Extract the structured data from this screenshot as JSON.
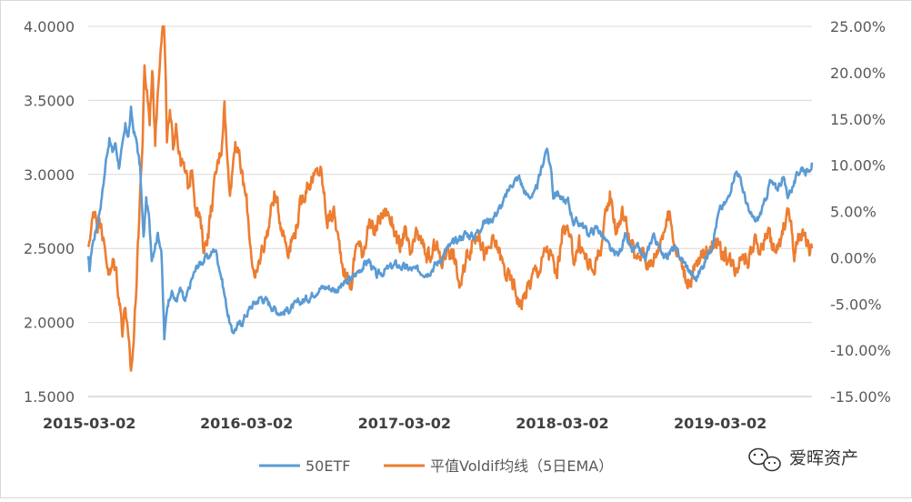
{
  "chart_data": {
    "type": "line",
    "title": "",
    "xlabel": "",
    "ylabel": "",
    "x_ticks": [
      "2015-03-02",
      "2016-03-02",
      "2017-03-02",
      "2018-03-02",
      "2019-03-02"
    ],
    "x_range": [
      "2015-03-02",
      "2019-09-30"
    ],
    "y_left": {
      "ticks": [
        "1.5000",
        "2.0000",
        "2.5000",
        "3.0000",
        "3.5000",
        "4.0000"
      ],
      "ylim": [
        1.5,
        4.0
      ]
    },
    "y_right": {
      "ticks": [
        "-15.00%",
        "-10.00%",
        "-5.00%",
        "0.00%",
        "5.00%",
        "10.00%",
        "15.00%",
        "20.00%",
        "25.00%"
      ],
      "ylim": [
        -15,
        25
      ],
      "unit": "%"
    },
    "grid": true,
    "legend_position": "bottom",
    "series": [
      {
        "name": "50ETF",
        "axis": "left",
        "color": "#5B9BD5",
        "points": [
          [
            "2015-03-02",
            2.43
          ],
          [
            "2015-03-05",
            2.35
          ],
          [
            "2015-03-11",
            2.52
          ],
          [
            "2015-03-18",
            2.6
          ],
          [
            "2015-03-25",
            2.7
          ],
          [
            "2015-04-01",
            2.82
          ],
          [
            "2015-04-08",
            2.98
          ],
          [
            "2015-04-14",
            3.14
          ],
          [
            "2015-04-20",
            3.24
          ],
          [
            "2015-04-27",
            3.15
          ],
          [
            "2015-05-04",
            3.21
          ],
          [
            "2015-05-12",
            3.06
          ],
          [
            "2015-05-19",
            3.16
          ],
          [
            "2015-05-27",
            3.32
          ],
          [
            "2015-06-03",
            3.26
          ],
          [
            "2015-06-09",
            3.43
          ],
          [
            "2015-06-15",
            3.3
          ],
          [
            "2015-06-23",
            3.2
          ],
          [
            "2015-06-30",
            3.04
          ],
          [
            "2015-07-08",
            2.56
          ],
          [
            "2015-07-14",
            2.83
          ],
          [
            "2015-07-20",
            2.72
          ],
          [
            "2015-07-27",
            2.44
          ],
          [
            "2015-08-03",
            2.52
          ],
          [
            "2015-08-10",
            2.6
          ],
          [
            "2015-08-18",
            2.5
          ],
          [
            "2015-08-25",
            1.89
          ],
          [
            "2015-09-01",
            2.12
          ],
          [
            "2015-09-10",
            2.22
          ],
          [
            "2015-09-20",
            2.14
          ],
          [
            "2015-10-01",
            2.22
          ],
          [
            "2015-10-12",
            2.13
          ],
          [
            "2015-10-26",
            2.28
          ],
          [
            "2015-11-09",
            2.38
          ],
          [
            "2015-11-23",
            2.42
          ],
          [
            "2015-12-07",
            2.45
          ],
          [
            "2015-12-21",
            2.5
          ],
          [
            "2016-01-04",
            2.31
          ],
          [
            "2016-01-15",
            2.12
          ],
          [
            "2016-01-28",
            1.93
          ],
          [
            "2016-02-05",
            1.96
          ],
          [
            "2016-02-20",
            2.0
          ],
          [
            "2016-03-02",
            2.06
          ],
          [
            "2016-03-16",
            2.12
          ],
          [
            "2016-04-05",
            2.17
          ],
          [
            "2016-04-20",
            2.14
          ],
          [
            "2016-05-10",
            2.08
          ],
          [
            "2016-05-25",
            2.07
          ],
          [
            "2016-06-15",
            2.1
          ],
          [
            "2016-07-05",
            2.14
          ],
          [
            "2016-07-25",
            2.17
          ],
          [
            "2016-08-15",
            2.23
          ],
          [
            "2016-09-05",
            2.24
          ],
          [
            "2016-09-25",
            2.22
          ],
          [
            "2016-10-15",
            2.26
          ],
          [
            "2016-11-05",
            2.31
          ],
          [
            "2016-11-25",
            2.38
          ],
          [
            "2016-12-10",
            2.42
          ],
          [
            "2016-12-28",
            2.31
          ],
          [
            "2017-01-15",
            2.35
          ],
          [
            "2017-02-10",
            2.39
          ],
          [
            "2017-03-02",
            2.37
          ],
          [
            "2017-04-01",
            2.35
          ],
          [
            "2017-04-25",
            2.34
          ],
          [
            "2017-05-20",
            2.41
          ],
          [
            "2017-06-10",
            2.5
          ],
          [
            "2017-06-30",
            2.55
          ],
          [
            "2017-07-20",
            2.6
          ],
          [
            "2017-08-10",
            2.58
          ],
          [
            "2017-08-30",
            2.67
          ],
          [
            "2017-09-20",
            2.7
          ],
          [
            "2017-10-15",
            2.8
          ],
          [
            "2017-11-05",
            2.94
          ],
          [
            "2017-11-22",
            2.98
          ],
          [
            "2017-12-08",
            2.86
          ],
          [
            "2017-12-28",
            2.86
          ],
          [
            "2018-01-10",
            3.0
          ],
          [
            "2018-01-24",
            3.18
          ],
          [
            "2018-02-05",
            3.02
          ],
          [
            "2018-02-09",
            2.86
          ],
          [
            "2018-02-20",
            2.88
          ],
          [
            "2018-03-02",
            2.82
          ],
          [
            "2018-03-15",
            2.82
          ],
          [
            "2018-03-28",
            2.68
          ],
          [
            "2018-04-15",
            2.67
          ],
          [
            "2018-05-01",
            2.6
          ],
          [
            "2018-05-22",
            2.64
          ],
          [
            "2018-06-10",
            2.55
          ],
          [
            "2018-06-25",
            2.47
          ],
          [
            "2018-07-10",
            2.46
          ],
          [
            "2018-07-25",
            2.58
          ],
          [
            "2018-08-10",
            2.48
          ],
          [
            "2018-08-25",
            2.5
          ],
          [
            "2018-09-10",
            2.42
          ],
          [
            "2018-09-28",
            2.6
          ],
          [
            "2018-10-12",
            2.5
          ],
          [
            "2018-10-30",
            2.45
          ],
          [
            "2018-11-15",
            2.5
          ],
          [
            "2018-12-05",
            2.42
          ],
          [
            "2018-12-25",
            2.33
          ],
          [
            "2019-01-04",
            2.29
          ],
          [
            "2019-01-20",
            2.38
          ],
          [
            "2019-02-10",
            2.52
          ],
          [
            "2019-02-25",
            2.72
          ],
          [
            "2019-03-02",
            2.76
          ],
          [
            "2019-03-18",
            2.82
          ],
          [
            "2019-04-01",
            2.98
          ],
          [
            "2019-04-10",
            3.03
          ],
          [
            "2019-04-25",
            2.88
          ],
          [
            "2019-05-10",
            2.72
          ],
          [
            "2019-05-25",
            2.68
          ],
          [
            "2019-06-10",
            2.78
          ],
          [
            "2019-06-25",
            2.95
          ],
          [
            "2019-07-10",
            2.9
          ],
          [
            "2019-07-25",
            2.98
          ],
          [
            "2019-08-05",
            2.86
          ],
          [
            "2019-08-20",
            2.94
          ],
          [
            "2019-09-05",
            3.05
          ],
          [
            "2019-09-18",
            3.02
          ],
          [
            "2019-09-30",
            3.08
          ]
        ]
      },
      {
        "name": "平值Voldif均线（5日EMA）",
        "axis": "right",
        "color": "#ED7D31",
        "points": [
          [
            "2015-03-02",
            0.5
          ],
          [
            "2015-03-06",
            2.5
          ],
          [
            "2015-03-12",
            4.0
          ],
          [
            "2015-03-18",
            5.3
          ],
          [
            "2015-03-25",
            3.5
          ],
          [
            "2015-04-01",
            4.5
          ],
          [
            "2015-04-08",
            1.0
          ],
          [
            "2015-04-15",
            -0.5
          ],
          [
            "2015-04-22",
            -2.0
          ],
          [
            "2015-04-29",
            -0.5
          ],
          [
            "2015-05-06",
            -1.5
          ],
          [
            "2015-05-13",
            -4.5
          ],
          [
            "2015-05-20",
            -7.5
          ],
          [
            "2015-05-27",
            -5.0
          ],
          [
            "2015-06-03",
            -9.5
          ],
          [
            "2015-06-09",
            -12.5
          ],
          [
            "2015-06-15",
            -9.0
          ],
          [
            "2015-06-22",
            -2.0
          ],
          [
            "2015-06-29",
            6.0
          ],
          [
            "2015-07-06",
            13.0
          ],
          [
            "2015-07-10",
            20.0
          ],
          [
            "2015-07-16",
            18.0
          ],
          [
            "2015-07-22",
            15.0
          ],
          [
            "2015-07-28",
            20.5
          ],
          [
            "2015-08-04",
            13.0
          ],
          [
            "2015-08-10",
            18.0
          ],
          [
            "2015-08-17",
            24.0
          ],
          [
            "2015-08-24",
            26.0
          ],
          [
            "2015-08-31",
            13.0
          ],
          [
            "2015-09-07",
            15.0
          ],
          [
            "2015-09-14",
            12.0
          ],
          [
            "2015-09-21",
            15.0
          ],
          [
            "2015-09-29",
            11.0
          ],
          [
            "2015-10-12",
            9.0
          ],
          [
            "2015-10-20",
            7.5
          ],
          [
            "2015-10-28",
            10.0
          ],
          [
            "2015-11-05",
            6.0
          ],
          [
            "2015-11-15",
            4.0
          ],
          [
            "2015-11-25",
            1.0
          ],
          [
            "2015-12-05",
            3.0
          ],
          [
            "2015-12-15",
            6.5
          ],
          [
            "2015-12-24",
            9.5
          ],
          [
            "2016-01-04",
            12.0
          ],
          [
            "2016-01-11",
            17.0
          ],
          [
            "2016-01-18",
            10.0
          ],
          [
            "2016-01-25",
            7.5
          ],
          [
            "2016-02-05",
            13.0
          ],
          [
            "2016-02-20",
            9.0
          ],
          [
            "2016-03-02",
            6.0
          ],
          [
            "2016-03-10",
            2.0
          ],
          [
            "2016-03-22",
            -3.0
          ],
          [
            "2016-04-05",
            0.5
          ],
          [
            "2016-04-20",
            3.0
          ],
          [
            "2016-05-05",
            7.0
          ],
          [
            "2016-05-20",
            4.0
          ],
          [
            "2016-06-05",
            1.0
          ],
          [
            "2016-06-20",
            2.5
          ],
          [
            "2016-07-05",
            5.5
          ],
          [
            "2016-07-20",
            8.0
          ],
          [
            "2016-08-05",
            8.5
          ],
          [
            "2016-08-20",
            9.5
          ],
          [
            "2016-09-05",
            4.0
          ],
          [
            "2016-09-20",
            5.0
          ],
          [
            "2016-10-01",
            1.5
          ],
          [
            "2016-10-15",
            -1.5
          ],
          [
            "2016-10-30",
            -3.0
          ],
          [
            "2016-11-12",
            2.0
          ],
          [
            "2016-11-25",
            0.5
          ],
          [
            "2016-12-08",
            3.5
          ],
          [
            "2016-12-22",
            2.5
          ],
          [
            "2017-01-05",
            4.5
          ],
          [
            "2017-01-20",
            5.0
          ],
          [
            "2017-02-05",
            3.5
          ],
          [
            "2017-02-20",
            0.5
          ],
          [
            "2017-03-02",
            3.0
          ],
          [
            "2017-03-15",
            0.0
          ],
          [
            "2017-04-01",
            2.5
          ],
          [
            "2017-04-15",
            1.0
          ],
          [
            "2017-05-01",
            -0.5
          ],
          [
            "2017-05-15",
            2.0
          ],
          [
            "2017-05-25",
            -1.0
          ],
          [
            "2017-06-10",
            1.5
          ],
          [
            "2017-06-25",
            0.0
          ],
          [
            "2017-07-10",
            -3.5
          ],
          [
            "2017-07-25",
            0.5
          ],
          [
            "2017-08-05",
            1.5
          ],
          [
            "2017-08-20",
            3.0
          ],
          [
            "2017-09-05",
            0.0
          ],
          [
            "2017-09-20",
            1.5
          ],
          [
            "2017-10-05",
            1.0
          ],
          [
            "2017-10-20",
            -1.5
          ],
          [
            "2017-11-10",
            -3.0
          ],
          [
            "2017-11-25",
            -5.0
          ],
          [
            "2017-12-10",
            -3.5
          ],
          [
            "2017-12-28",
            -1.5
          ],
          [
            "2018-01-10",
            -1.0
          ],
          [
            "2018-01-24",
            1.0
          ],
          [
            "2018-02-05",
            0.0
          ],
          [
            "2018-02-15",
            -2.0
          ],
          [
            "2018-02-25",
            0.5
          ],
          [
            "2018-03-05",
            4.0
          ],
          [
            "2018-03-15",
            2.5
          ],
          [
            "2018-03-28",
            0.0
          ],
          [
            "2018-04-10",
            1.5
          ],
          [
            "2018-04-25",
            0.0
          ],
          [
            "2018-05-10",
            -1.5
          ],
          [
            "2018-05-25",
            0.5
          ],
          [
            "2018-06-05",
            2.5
          ],
          [
            "2018-06-20",
            7.0
          ],
          [
            "2018-07-05",
            3.0
          ],
          [
            "2018-07-20",
            5.0
          ],
          [
            "2018-08-05",
            2.0
          ],
          [
            "2018-08-20",
            -0.5
          ],
          [
            "2018-09-05",
            1.0
          ],
          [
            "2018-09-20",
            -1.0
          ],
          [
            "2018-10-05",
            0.5
          ],
          [
            "2018-10-20",
            3.0
          ],
          [
            "2018-11-05",
            4.5
          ],
          [
            "2018-11-20",
            1.0
          ],
          [
            "2018-12-05",
            -1.0
          ],
          [
            "2018-12-20",
            -3.0
          ],
          [
            "2019-01-05",
            -1.0
          ],
          [
            "2019-01-20",
            0.0
          ],
          [
            "2019-02-05",
            1.5
          ],
          [
            "2019-02-20",
            2.0
          ],
          [
            "2019-03-02",
            0.5
          ],
          [
            "2019-03-20",
            0.0
          ],
          [
            "2019-04-05",
            -1.0
          ],
          [
            "2019-04-20",
            0.5
          ],
          [
            "2019-05-05",
            0.0
          ],
          [
            "2019-05-20",
            1.5
          ],
          [
            "2019-06-05",
            1.0
          ],
          [
            "2019-06-20",
            3.0
          ],
          [
            "2019-07-05",
            0.5
          ],
          [
            "2019-07-20",
            1.5
          ],
          [
            "2019-08-01",
            5.0
          ],
          [
            "2019-08-10",
            4.5
          ],
          [
            "2019-08-20",
            0.0
          ],
          [
            "2019-09-01",
            2.5
          ],
          [
            "2019-09-10",
            2.0
          ],
          [
            "2019-09-20",
            1.0
          ],
          [
            "2019-09-30",
            1.0
          ]
        ]
      }
    ]
  },
  "watermark": {
    "text": "爱晖资产",
    "icon": "wechat-icon"
  }
}
